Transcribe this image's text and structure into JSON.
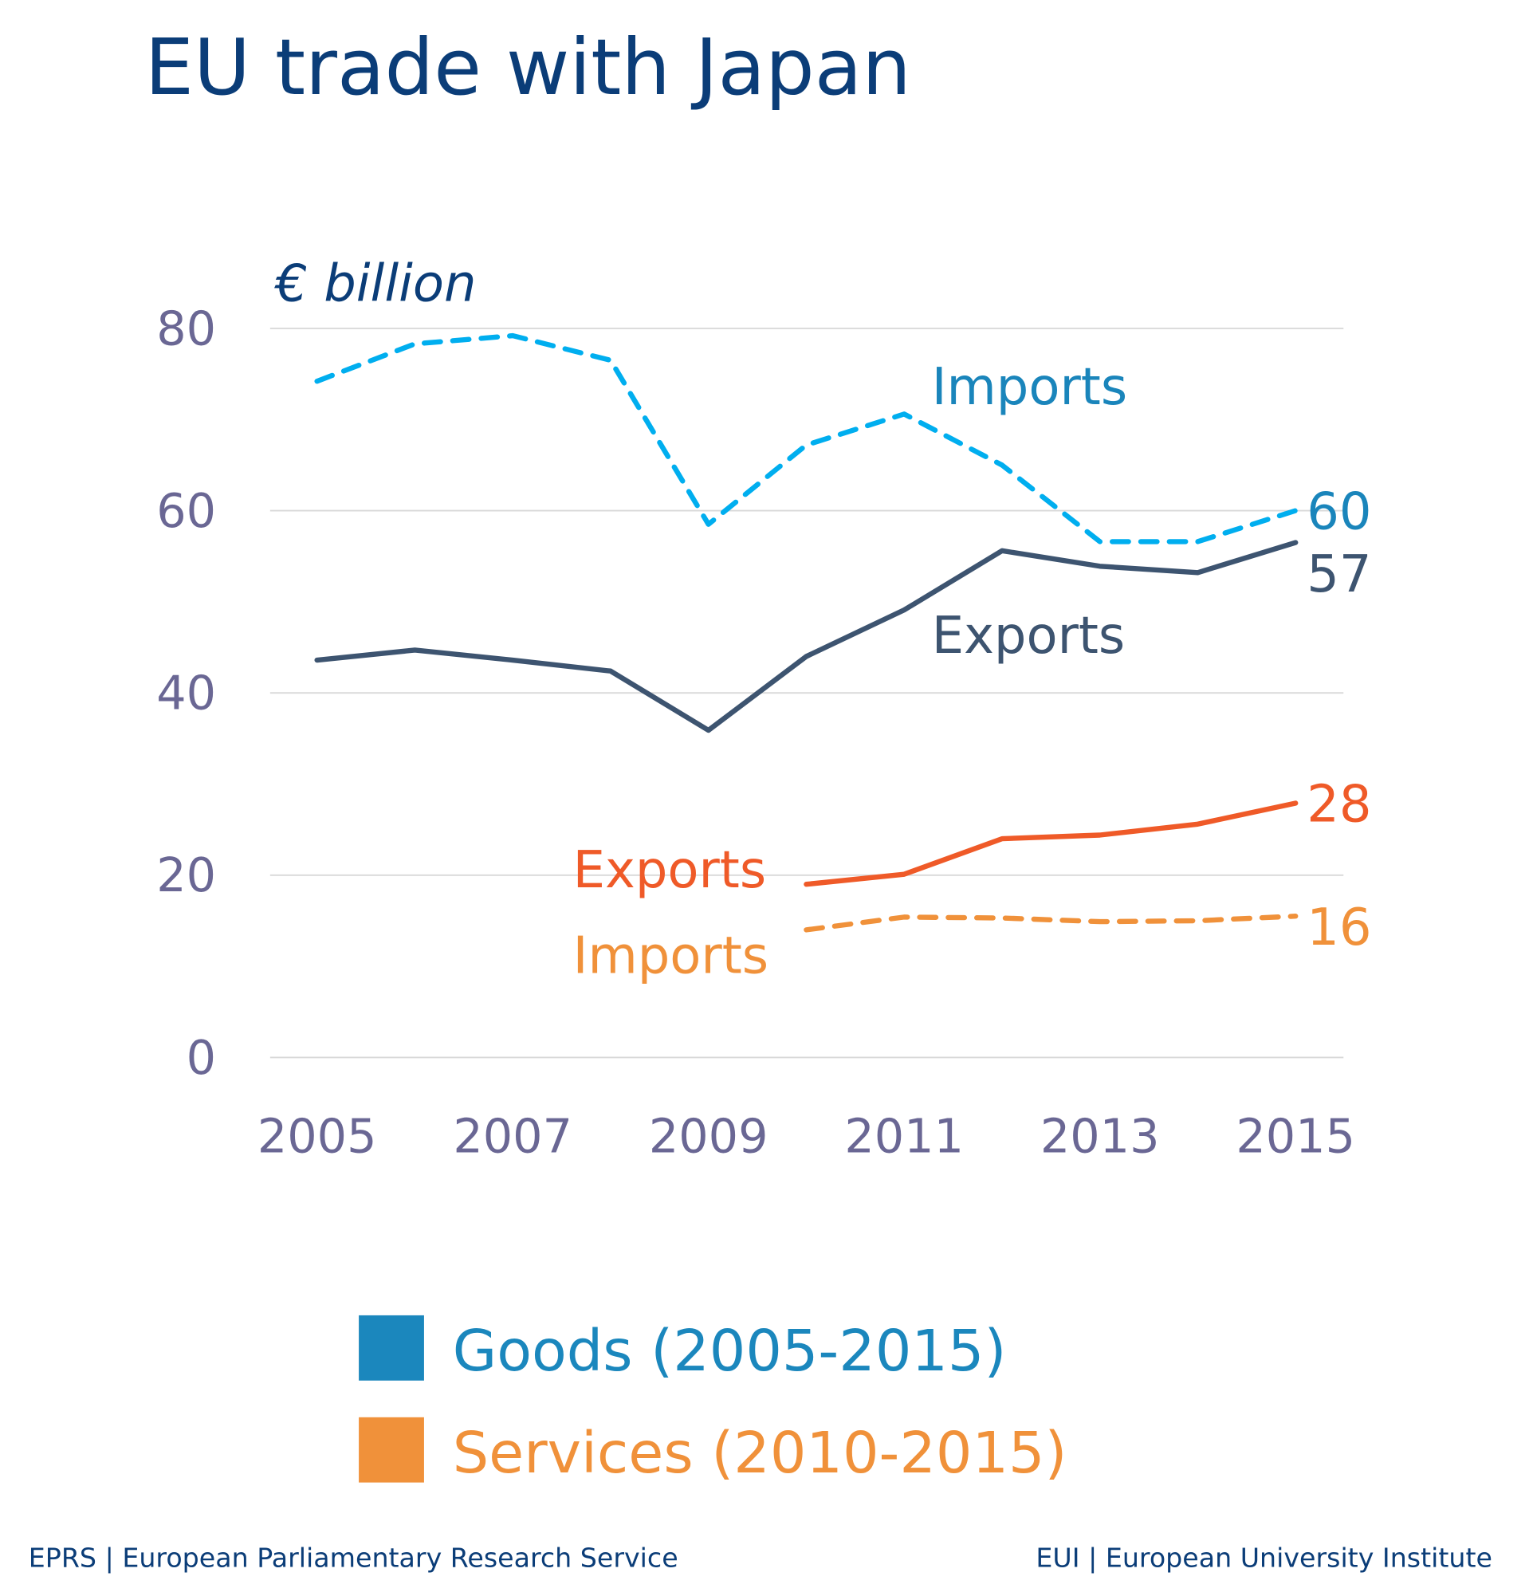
{
  "chart_data": {
    "type": "line",
    "title": "EU trade with Japan",
    "ylabel": "€ billion",
    "xlabel": "",
    "x": [
      2005,
      2006,
      2007,
      2008,
      2009,
      2010,
      2011,
      2012,
      2013,
      2014,
      2015
    ],
    "x_tick_labels": [
      "2005",
      "2007",
      "2009",
      "2011",
      "2013",
      "2015"
    ],
    "y_tick_labels": [
      "0",
      "20",
      "40",
      "60",
      "80"
    ],
    "ylim": [
      0,
      80
    ],
    "grid": true,
    "series": [
      {
        "name": "Imports",
        "group": "Goods",
        "style": "dashed",
        "color": "#00aeef",
        "label_color": "#1a85bb",
        "x": [
          2005,
          2006,
          2007,
          2008,
          2009,
          2010,
          2011,
          2012,
          2013,
          2014,
          2015
        ],
        "values": [
          74.2,
          78.3,
          79.2,
          76.5,
          58.5,
          67.2,
          70.6,
          65.0,
          56.6,
          56.6,
          60.0
        ],
        "end_label": "60"
      },
      {
        "name": "Exports",
        "group": "Goods",
        "style": "solid",
        "color": "#3d5470",
        "label_color": "#3d5470",
        "x": [
          2005,
          2006,
          2007,
          2008,
          2009,
          2010,
          2011,
          2012,
          2013,
          2014,
          2015
        ],
        "values": [
          43.6,
          44.7,
          43.6,
          42.4,
          35.9,
          44.0,
          49.1,
          55.6,
          53.9,
          53.2,
          56.5
        ],
        "end_label": "57"
      },
      {
        "name": "Exports",
        "group": "Services",
        "style": "solid",
        "color": "#ef5a28",
        "label_color": "#ef5a28",
        "x": [
          2010,
          2011,
          2012,
          2013,
          2014,
          2015
        ],
        "values": [
          19.0,
          20.1,
          24.0,
          24.4,
          25.6,
          27.9
        ],
        "end_label": "28"
      },
      {
        "name": "Imports",
        "group": "Services",
        "style": "dashed",
        "color": "#f0913a",
        "label_color": "#f0913a",
        "x": [
          2010,
          2011,
          2012,
          2013,
          2014,
          2015
        ],
        "values": [
          14.0,
          15.4,
          15.3,
          14.9,
          15.0,
          15.5
        ],
        "end_label": "16"
      }
    ],
    "legend": {
      "placement": "bottom",
      "items": [
        {
          "label": "Goods (2005-2015)",
          "color": "#1b87bd"
        },
        {
          "label": "Services (2010-2015)",
          "color": "#f0913a"
        }
      ]
    }
  },
  "footer": {
    "left": "EPRS | European Parliamentary Research Service",
    "right": "EUI | European University Institute"
  },
  "colors": {
    "title": "#0b3d78",
    "axis": "#6a6794"
  }
}
